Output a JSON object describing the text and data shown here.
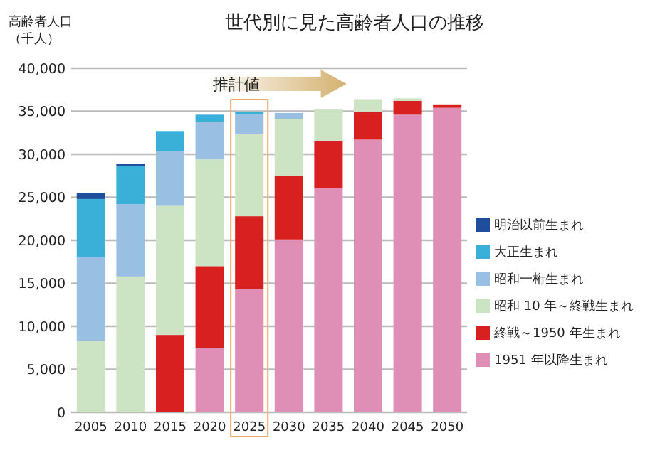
{
  "chart_data": {
    "type": "bar",
    "title": "世代別に見た高齢者人口の推移",
    "ylabel": "高齢者人口（千人）",
    "annotations": [
      "推計値"
    ],
    "categories": [
      "2005",
      "2010",
      "2015",
      "2020",
      "2025",
      "2030",
      "2035",
      "2040",
      "2045",
      "2050"
    ],
    "stacked": true,
    "ylim": [
      0,
      40000
    ],
    "yticks": [
      {
        "value": 0,
        "label": "0"
      },
      {
        "value": 5000,
        "label": "5,000"
      },
      {
        "value": 10000,
        "label": "10,000"
      },
      {
        "value": 15000,
        "label": "15,000"
      },
      {
        "value": 20000,
        "label": "20,000"
      },
      {
        "value": 25000,
        "label": "25,000"
      },
      {
        "value": 30000,
        "label": "30,000"
      },
      {
        "value": 35000,
        "label": "35,000"
      },
      {
        "value": 40000,
        "label": "40,000"
      }
    ],
    "grid": "y",
    "legend": "right",
    "series": [
      {
        "name": "1951 年以降生まれ",
        "color": "#df8fb5",
        "values": [
          null,
          null,
          null,
          7500,
          14300,
          20100,
          26100,
          31700,
          34600,
          35400
        ]
      },
      {
        "name": "終戦～1950 年生まれ",
        "color": "#d92020",
        "values": [
          null,
          null,
          9000,
          9500,
          8500,
          7400,
          5400,
          3200,
          1600,
          400
        ]
      },
      {
        "name": "昭和 10 年～終戦生まれ",
        "color": "#cce3c4",
        "values": [
          8300,
          15800,
          15000,
          12400,
          9600,
          6600,
          3700,
          1500,
          300,
          null
        ]
      },
      {
        "name": "昭和一桁生まれ",
        "color": "#99bfe3",
        "values": [
          9700,
          8400,
          6400,
          4400,
          2300,
          700,
          null,
          null,
          null,
          null
        ]
      },
      {
        "name": "大正生まれ",
        "color": "#3ab0d8",
        "values": [
          6800,
          4400,
          2300,
          800,
          200,
          null,
          null,
          null,
          null,
          null
        ]
      },
      {
        "name": "明治以前生まれ",
        "color": "#1f4e9c",
        "values": [
          700,
          300,
          null,
          null,
          null,
          null,
          null,
          null,
          null,
          null
        ]
      }
    ]
  }
}
